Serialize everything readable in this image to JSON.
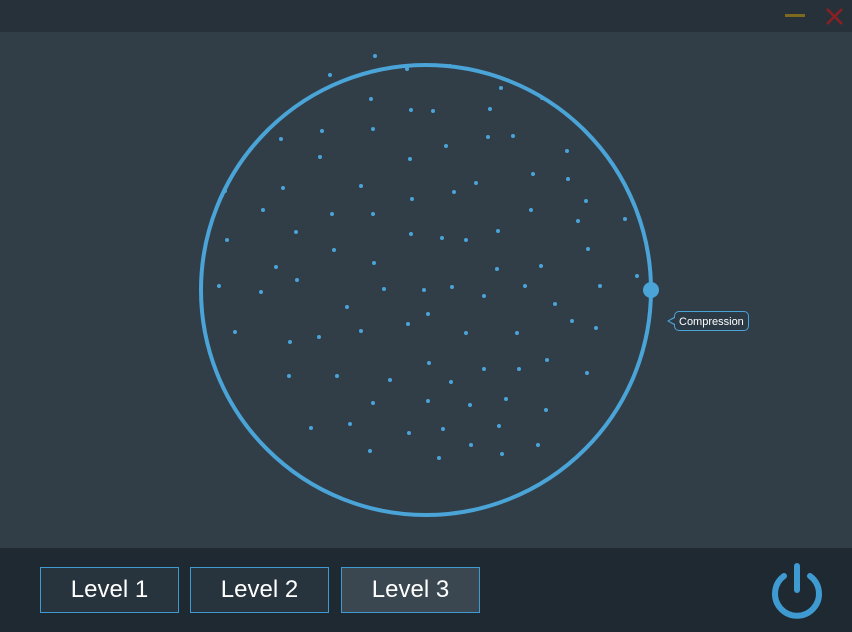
{
  "window": {
    "minimize_icon": "minimize-icon",
    "close_icon": "close-icon"
  },
  "visualizer": {
    "tooltip_label": "Compression",
    "accent_color": "#4aa4d8"
  },
  "levels": [
    {
      "label": "Level 1",
      "selected": false
    },
    {
      "label": "Level 2",
      "selected": false
    },
    {
      "label": "Level 3",
      "selected": true
    }
  ],
  "power": {
    "icon": "power-icon"
  }
}
